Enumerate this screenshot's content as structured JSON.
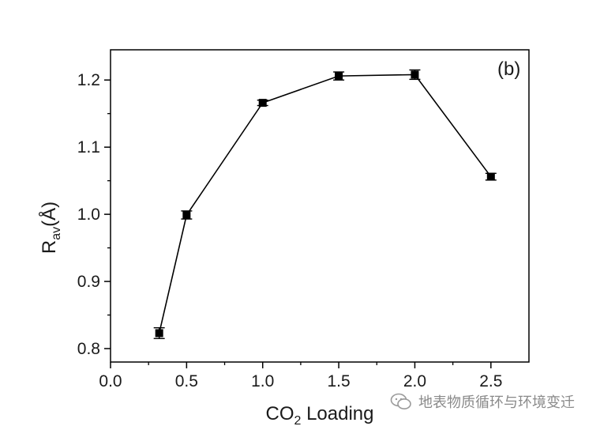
{
  "chart_data": {
    "type": "line",
    "panel_label": "(b)",
    "xlabel": {
      "main": "CO",
      "sub": "2",
      "tail": " Loading"
    },
    "ylabel": {
      "main": "R",
      "sub": "av",
      "tail": "(Å)"
    },
    "xlim": [
      0.0,
      2.75
    ],
    "ylim": [
      0.78,
      1.245
    ],
    "xticks": [
      "0.0",
      "0.5",
      "1.0",
      "1.5",
      "2.0",
      "2.5"
    ],
    "xtick_values": [
      0.0,
      0.5,
      1.0,
      1.5,
      2.0,
      2.5
    ],
    "yticks": [
      "0.8",
      "0.9",
      "1.0",
      "1.1",
      "1.2"
    ],
    "ytick_values": [
      0.8,
      0.9,
      1.0,
      1.1,
      1.2
    ],
    "series": [
      {
        "x": [
          0.32,
          0.5,
          1.0,
          1.5,
          2.0,
          2.5
        ],
        "y": [
          0.823,
          0.999,
          1.166,
          1.206,
          1.208,
          1.056
        ],
        "err": [
          0.008,
          0.006,
          0.004,
          0.006,
          0.007,
          0.005
        ],
        "color": "#000000",
        "marker": "square"
      }
    ],
    "grid": false
  },
  "watermark": {
    "text": "地表物质循环与环境变迁",
    "icon": "wechat-logo-icon"
  }
}
